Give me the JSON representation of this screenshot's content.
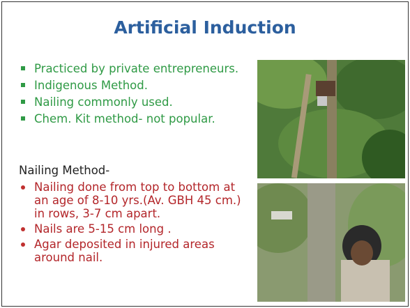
{
  "title": "Artificial Induction",
  "green_bullets": [
    "Practiced by private entrepreneurs.",
    "Indigenous Method.",
    "Nailing commonly used.",
    "Chem. Kit method- not popular."
  ],
  "subheading": "Nailing Method-",
  "red_bullets": [
    "Nailing done from top to bottom at an age of 8-10 yrs.(Av. GBH 45 cm.) in rows, 3-7 cm apart.",
    "Nails are 5-15 cm long .",
    "Agar deposited in injured areas around nail."
  ]
}
